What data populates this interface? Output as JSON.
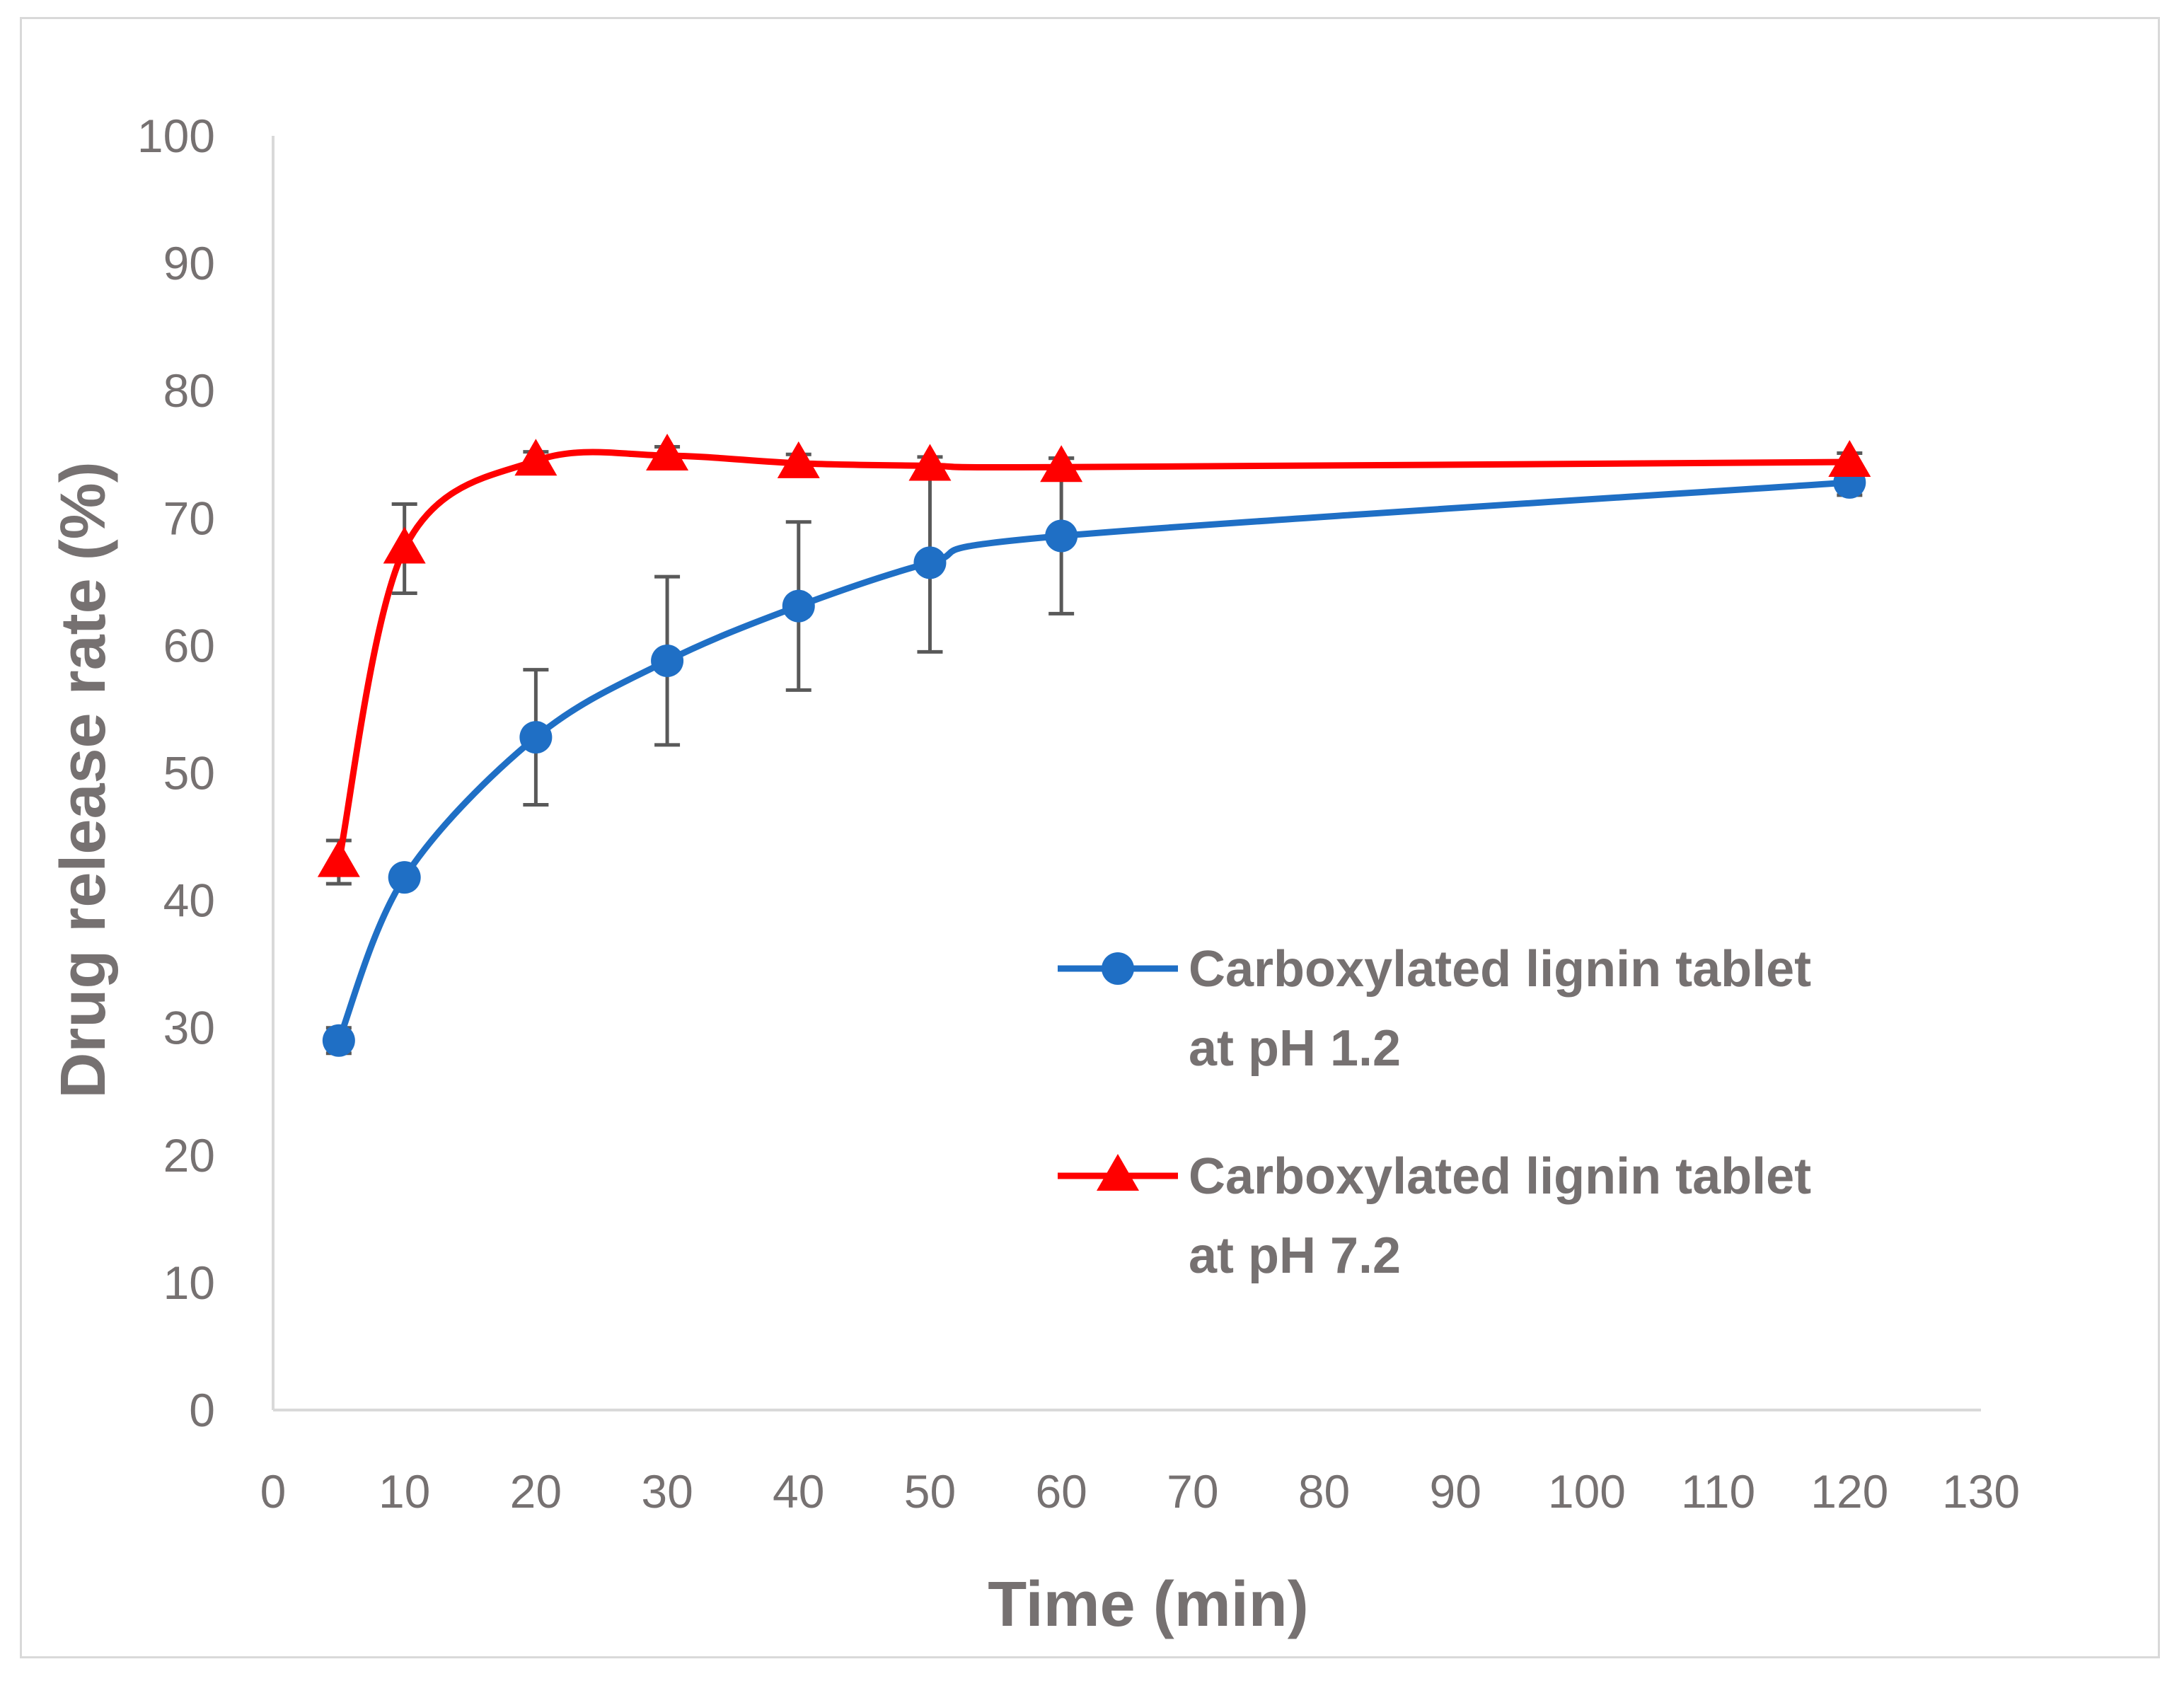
{
  "chart_data": {
    "type": "line",
    "xlabel": "Time (min)",
    "ylabel": "Drug release rate (%)",
    "xlim": [
      0,
      130
    ],
    "ylim": [
      0,
      100
    ],
    "xticks": [
      0,
      10,
      20,
      30,
      40,
      50,
      60,
      70,
      80,
      90,
      100,
      110,
      120,
      130
    ],
    "yticks": [
      0,
      10,
      20,
      30,
      40,
      50,
      60,
      70,
      80,
      90,
      100
    ],
    "grid": false,
    "legend_position": "right",
    "series": [
      {
        "name": "Carboxylated lignin tablet at pH 1.2",
        "name_lines": [
          "Carboxylated lignin tablet",
          "at pH 1.2"
        ],
        "color": "#1f6fc5",
        "marker": "circle",
        "x": [
          5,
          10,
          20,
          30,
          40,
          50,
          60,
          120
        ],
        "y": [
          29.0,
          41.8,
          52.8,
          58.8,
          63.1,
          66.5,
          68.6,
          72.8
        ],
        "error": [
          1.0,
          0.5,
          5.3,
          6.6,
          6.6,
          7.0,
          6.1,
          1.0
        ]
      },
      {
        "name": "Carboxylated lignin tablet at pH 7.2",
        "name_lines": [
          "Carboxylated lignin tablet",
          "at pH 7.2"
        ],
        "color": "#ff0000",
        "marker": "triangle",
        "x": [
          5,
          10,
          20,
          30,
          40,
          50,
          60,
          120
        ],
        "y": [
          43.0,
          67.6,
          74.5,
          74.9,
          74.3,
          74.1,
          74.0,
          74.4
        ],
        "error": [
          1.7,
          3.5,
          0.7,
          0.7,
          0.7,
          0.7,
          0.7,
          0.7
        ]
      }
    ]
  }
}
